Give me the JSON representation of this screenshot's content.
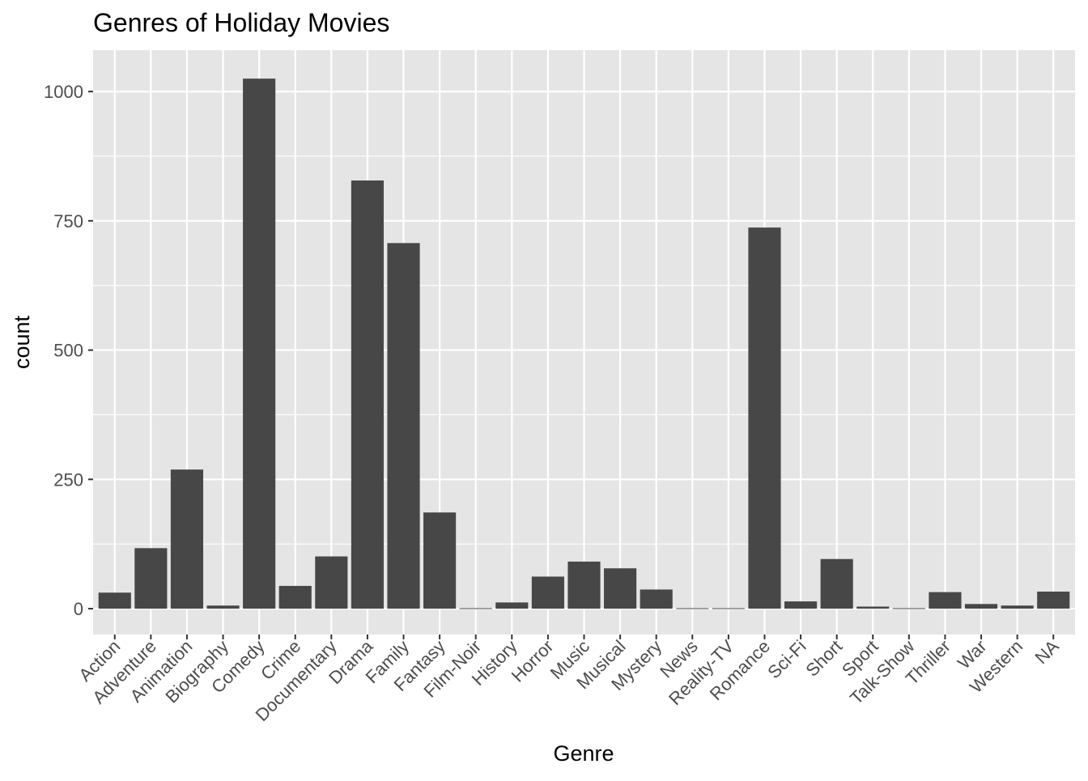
{
  "chart_data": {
    "type": "bar",
    "title": "Genres of Holiday Movies",
    "xlabel": "Genre",
    "ylabel": "count",
    "categories": [
      "Action",
      "Adventure",
      "Animation",
      "Biography",
      "Comedy",
      "Crime",
      "Documentary",
      "Drama",
      "Family",
      "Fantasy",
      "Film-Noir",
      "History",
      "Horror",
      "Music",
      "Musical",
      "Mystery",
      "News",
      "Reality-TV",
      "Romance",
      "Sci-Fi",
      "Short",
      "Sport",
      "Talk-Show",
      "Thriller",
      "War",
      "Western",
      "NA"
    ],
    "values": [
      31,
      117,
      269,
      6,
      1025,
      44,
      101,
      828,
      707,
      186,
      1,
      12,
      62,
      91,
      78,
      37,
      1,
      1,
      737,
      14,
      96,
      4,
      1,
      32,
      9,
      6,
      33
    ],
    "ylim": [
      -50,
      1080
    ],
    "yticks": [
      0,
      250,
      500,
      750,
      1000
    ],
    "yticklabels": [
      "0",
      "250",
      "500",
      "750",
      "1000"
    ],
    "grid": true,
    "colors": {
      "bar": "#474747",
      "panel": "#e5e5e5",
      "grid": "#ffffff",
      "text": "#000000",
      "tick_text": "#4d4d4d"
    }
  }
}
